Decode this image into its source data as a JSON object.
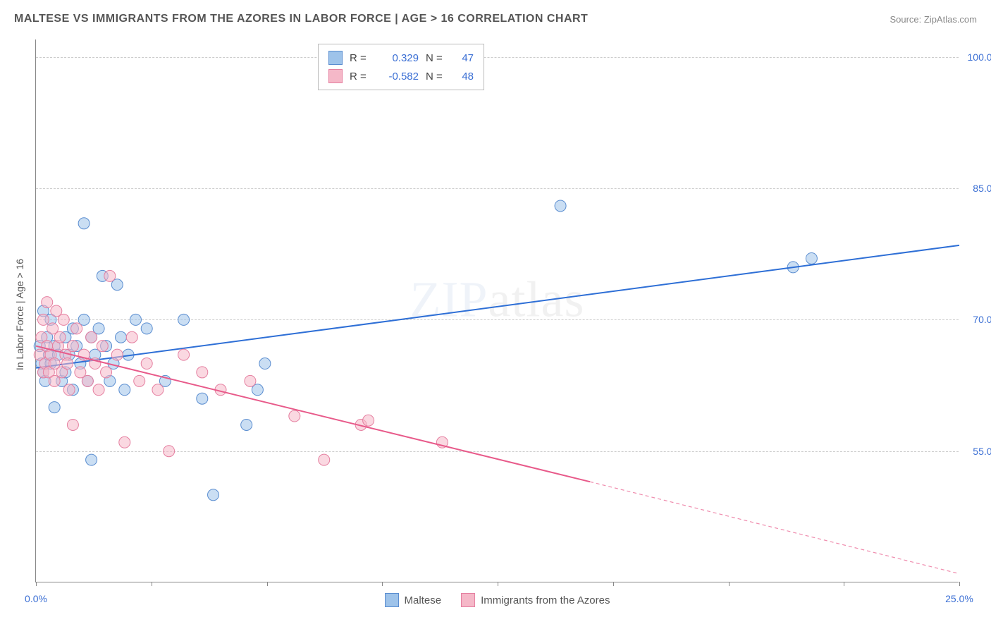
{
  "title": "MALTESE VS IMMIGRANTS FROM THE AZORES IN LABOR FORCE | AGE > 16 CORRELATION CHART",
  "source_label": "Source: ",
  "source_name": "ZipAtlas.com",
  "y_axis_title": "In Labor Force | Age > 16",
  "watermark_bold": "ZIP",
  "watermark_thin": "atlas",
  "chart": {
    "type": "scatter",
    "background_color": "#ffffff",
    "grid_color": "#cccccc",
    "axis_color": "#888888",
    "tick_label_color": "#3b6fd4",
    "xlim": [
      0,
      25
    ],
    "ylim": [
      40,
      102
    ],
    "x_ticks": [
      0,
      3.125,
      6.25,
      9.375,
      12.5,
      15.625,
      18.75,
      21.875,
      25
    ],
    "x_tick_labels": {
      "0": "0.0%",
      "25": "25.0%"
    },
    "y_grid": [
      55,
      70,
      85,
      100
    ],
    "y_tick_labels": {
      "55": "55.0%",
      "70": "70.0%",
      "85": "85.0%",
      "100": "100.0%"
    },
    "point_radius": 8,
    "point_opacity": 0.55,
    "line_width": 2,
    "dash_pattern": "5,4"
  },
  "series": [
    {
      "id": "maltese",
      "label": "Maltese",
      "fill_color": "#9ec3ea",
      "stroke_color": "#5a8dd0",
      "line_color": "#2e6fd6",
      "r_value": "0.329",
      "n_value": "47",
      "points": [
        [
          0.1,
          67
        ],
        [
          0.15,
          65
        ],
        [
          0.2,
          71
        ],
        [
          0.2,
          64
        ],
        [
          0.25,
          63
        ],
        [
          0.3,
          68
        ],
        [
          0.35,
          66
        ],
        [
          0.4,
          65
        ],
        [
          0.4,
          70
        ],
        [
          0.5,
          67
        ],
        [
          0.5,
          60
        ],
        [
          0.6,
          66
        ],
        [
          0.7,
          63
        ],
        [
          0.8,
          68
        ],
        [
          0.8,
          64
        ],
        [
          0.9,
          66
        ],
        [
          1.0,
          69
        ],
        [
          1.0,
          62
        ],
        [
          1.1,
          67
        ],
        [
          1.2,
          65
        ],
        [
          1.3,
          81
        ],
        [
          1.3,
          70
        ],
        [
          1.4,
          63
        ],
        [
          1.5,
          68
        ],
        [
          1.5,
          54
        ],
        [
          1.6,
          66
        ],
        [
          1.7,
          69
        ],
        [
          1.8,
          75
        ],
        [
          1.9,
          67
        ],
        [
          2.0,
          63
        ],
        [
          2.1,
          65
        ],
        [
          2.2,
          74
        ],
        [
          2.3,
          68
        ],
        [
          2.4,
          62
        ],
        [
          2.5,
          66
        ],
        [
          2.7,
          70
        ],
        [
          3.0,
          69
        ],
        [
          3.5,
          63
        ],
        [
          4.0,
          70
        ],
        [
          4.5,
          61
        ],
        [
          4.8,
          50
        ],
        [
          5.7,
          58
        ],
        [
          6.0,
          62
        ],
        [
          6.2,
          65
        ],
        [
          14.2,
          83
        ],
        [
          20.5,
          76
        ],
        [
          21.0,
          77
        ]
      ],
      "trend_solid": {
        "x1": 0,
        "y1": 64.5,
        "x2": 25,
        "y2": 78.5
      },
      "trend_dashed": null
    },
    {
      "id": "azores",
      "label": "Immigrants from the Azores",
      "fill_color": "#f5b8c8",
      "stroke_color": "#e57fa0",
      "line_color": "#e85a8a",
      "r_value": "-0.582",
      "n_value": "48",
      "points": [
        [
          0.1,
          66
        ],
        [
          0.15,
          68
        ],
        [
          0.2,
          64
        ],
        [
          0.2,
          70
        ],
        [
          0.25,
          65
        ],
        [
          0.3,
          67
        ],
        [
          0.3,
          72
        ],
        [
          0.35,
          64
        ],
        [
          0.4,
          66
        ],
        [
          0.45,
          69
        ],
        [
          0.5,
          65
        ],
        [
          0.5,
          63
        ],
        [
          0.55,
          71
        ],
        [
          0.6,
          67
        ],
        [
          0.65,
          68
        ],
        [
          0.7,
          64
        ],
        [
          0.75,
          70
        ],
        [
          0.8,
          66
        ],
        [
          0.85,
          65
        ],
        [
          0.9,
          62
        ],
        [
          1.0,
          67
        ],
        [
          1.0,
          58
        ],
        [
          1.1,
          69
        ],
        [
          1.2,
          64
        ],
        [
          1.3,
          66
        ],
        [
          1.4,
          63
        ],
        [
          1.5,
          68
        ],
        [
          1.6,
          65
        ],
        [
          1.7,
          62
        ],
        [
          1.8,
          67
        ],
        [
          1.9,
          64
        ],
        [
          2.0,
          75
        ],
        [
          2.2,
          66
        ],
        [
          2.4,
          56
        ],
        [
          2.6,
          68
        ],
        [
          2.8,
          63
        ],
        [
          3.0,
          65
        ],
        [
          3.3,
          62
        ],
        [
          3.6,
          55
        ],
        [
          4.0,
          66
        ],
        [
          4.5,
          64
        ],
        [
          5.0,
          62
        ],
        [
          5.8,
          63
        ],
        [
          7.0,
          59
        ],
        [
          7.8,
          54
        ],
        [
          8.8,
          58
        ],
        [
          9.0,
          58.5
        ],
        [
          11.0,
          56
        ]
      ],
      "trend_solid": {
        "x1": 0,
        "y1": 67,
        "x2": 15,
        "y2": 51.5
      },
      "trend_dashed": {
        "x1": 15,
        "y1": 51.5,
        "x2": 25,
        "y2": 41
      }
    }
  ],
  "stats_box": {
    "r_label": "R =",
    "n_label": "N ="
  },
  "legend": {
    "items": [
      "maltese",
      "azores"
    ]
  }
}
